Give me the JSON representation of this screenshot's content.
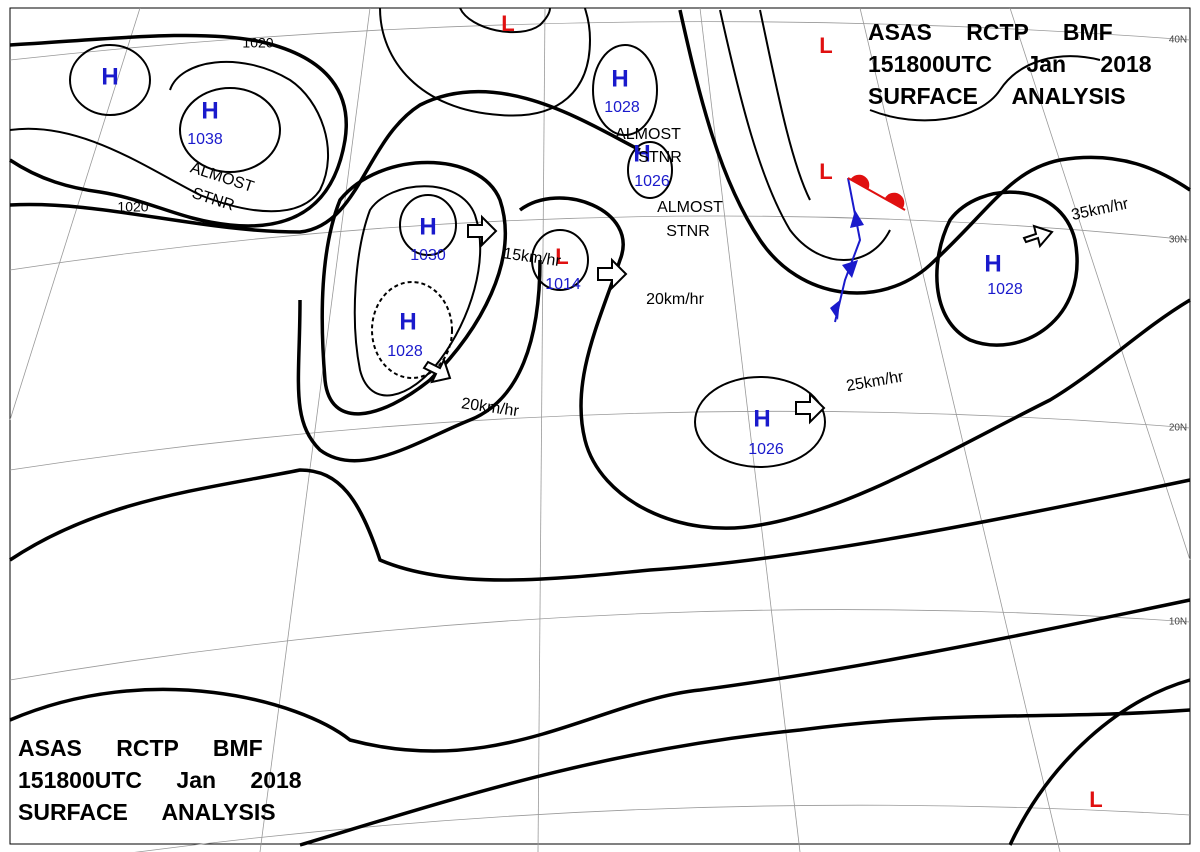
{
  "header_top": {
    "lines": [
      "ASAS RCTP BMF",
      "151800UTC Jan 2018",
      "SURFACE ANALYSIS"
    ]
  },
  "header_bottom": {
    "lines": [
      "ASAS RCTP BMF",
      "151800UTC Jan 2018",
      "SURFACE ANALYSIS"
    ]
  },
  "centers": [
    {
      "label": "H"
    },
    {
      "label": "H",
      "value": "1038"
    },
    {
      "label": "H",
      "value": "1030"
    },
    {
      "label": "H",
      "value": "1028"
    },
    {
      "label": "L",
      "value": "1014"
    },
    {
      "label": "H",
      "value": "1028"
    },
    {
      "label": "H",
      "value": "1026"
    },
    {
      "label": "H",
      "value": "1026"
    },
    {
      "label": "H",
      "value": "1028"
    },
    {
      "label": "L"
    },
    {
      "label": "L"
    },
    {
      "label": "L"
    },
    {
      "label": "L"
    }
  ],
  "annotations": [
    {
      "lines": [
        "ALMOST",
        "STNR"
      ]
    },
    {
      "lines": [
        "ALMOST",
        "STNR"
      ]
    },
    {
      "lines": [
        "ALMOST",
        "STNR"
      ]
    }
  ],
  "motions": [
    "15km/hr",
    "20km/hr",
    "20km/hr",
    "25km/hr",
    "35km/hr"
  ],
  "isobar_labels": [
    "1020",
    "1020"
  ],
  "latitude_labels": [
    "40N",
    "30N",
    "20N",
    "10N"
  ]
}
